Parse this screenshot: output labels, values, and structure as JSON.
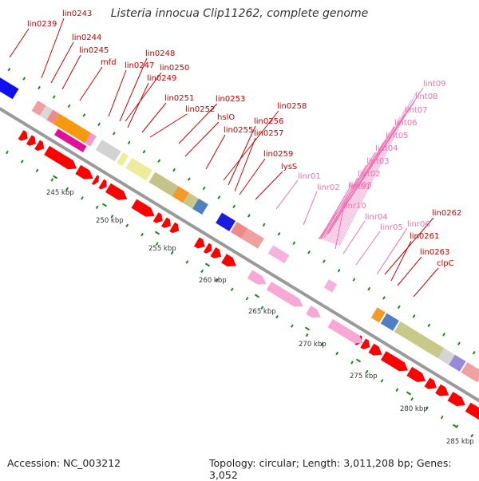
{
  "title": "Listeria innocua Clip11262, complete genome",
  "footer": {
    "accession": "Accession: NC_003212",
    "summary": "Topology: circular; Length: 3,011,208 bp; Genes: 3,052"
  },
  "colors": {
    "gene_label": "#cc0000",
    "rna_label": "#f070b0",
    "forward_arrow": "#ff0000",
    "rna_arrow": "#f7a8d4",
    "tick": "#1a8a1a",
    "backbone": "#9a9a9a"
  },
  "scale_ticks": [
    "245 kbp",
    "250 kbp",
    "255 kbp",
    "260 kbp",
    "265 kbp",
    "270 kbp",
    "275 kbp",
    "280 kbp",
    "285 kbp"
  ],
  "gene_labels": [
    "lin0243",
    "lin0239",
    "lin0244",
    "lin0245",
    "mfd",
    "lin0247",
    "lin0248",
    "lin0250",
    "lin0249",
    "lin0251",
    "lin0252",
    "lin0253",
    "hslO",
    "lin0258",
    "lin0256",
    "lin0255",
    "lin0257",
    "lin0259",
    "lysS",
    "lin0262",
    "lin0261",
    "lin0263",
    "clpC"
  ],
  "rna_labels": [
    "lint09",
    "lint08",
    "lint07",
    "lint06",
    "lint05",
    "lint04",
    "lint03",
    "lint02",
    "lint01",
    "linr01",
    "linr02",
    "linr03",
    "linr10",
    "linr04",
    "linr05",
    "linr06"
  ]
}
